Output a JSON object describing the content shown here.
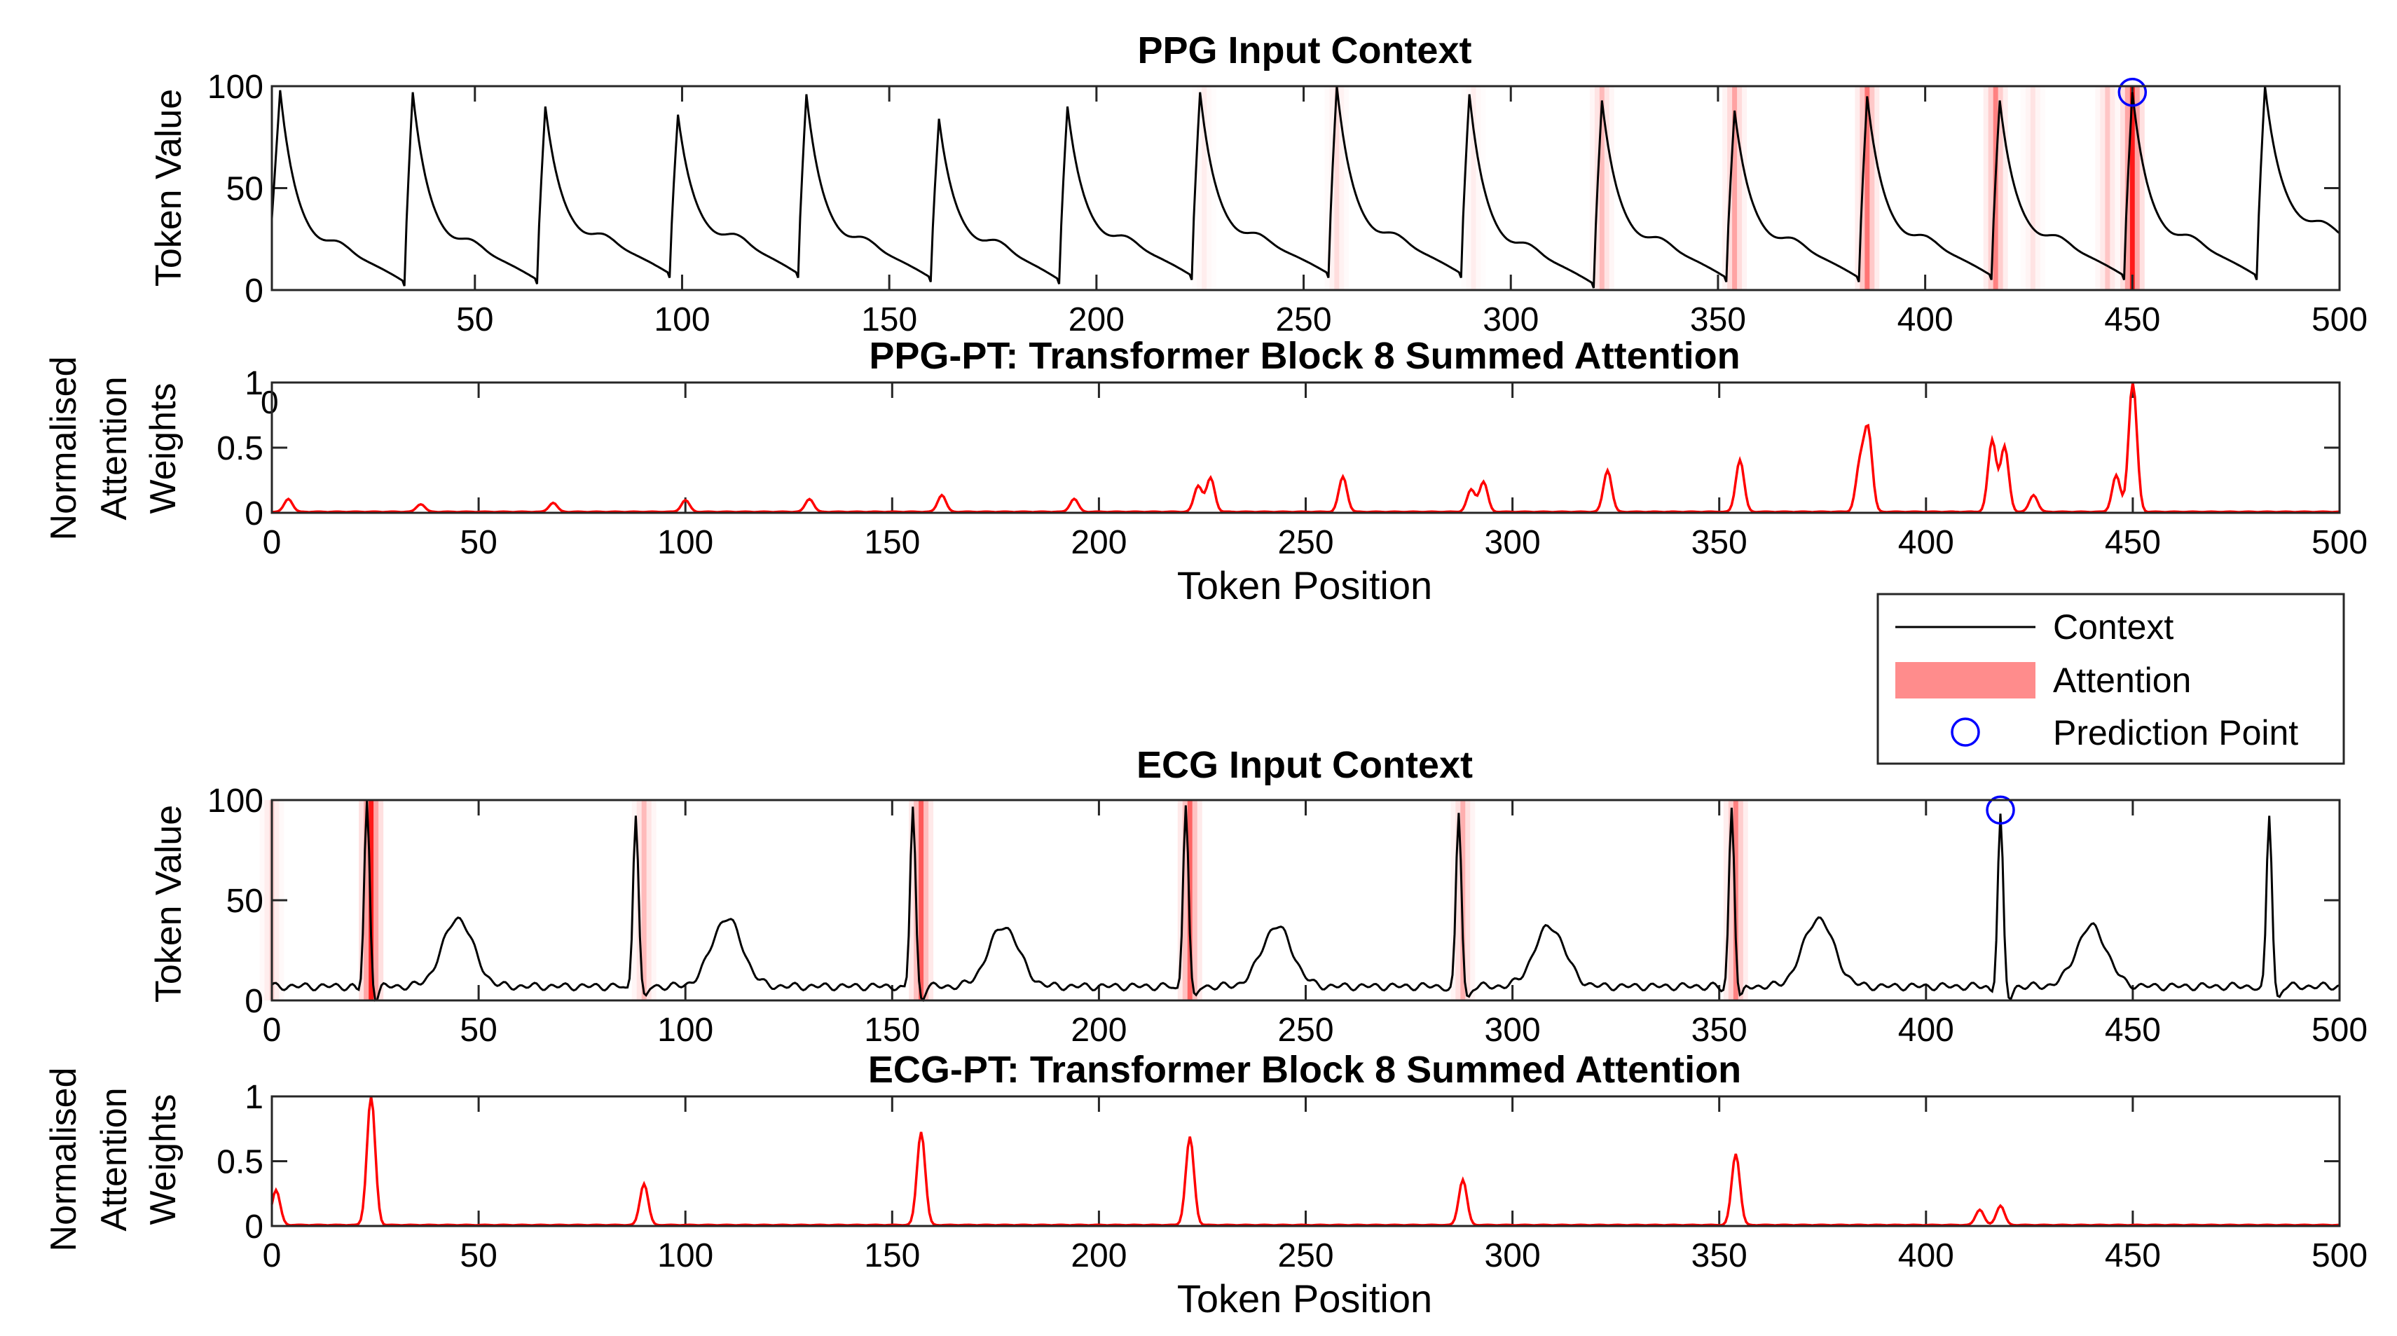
{
  "chart_data": [
    {
      "type": "line",
      "title": "PPG Input Context",
      "xlabel": "",
      "ylabel": "Token Value",
      "xlim": [
        1,
        500
      ],
      "ylim": [
        0,
        100
      ],
      "xticks": [
        50,
        100,
        150,
        200,
        250,
        300,
        350,
        400,
        450,
        500
      ],
      "yticks": [
        0,
        50,
        100
      ],
      "peaks": [
        3,
        35,
        67,
        99,
        130,
        162,
        193,
        225,
        258,
        290,
        322,
        354,
        386,
        418,
        450,
        482
      ],
      "peak_values": [
        98,
        97,
        90,
        86,
        96,
        84,
        90,
        97,
        100,
        96,
        93,
        88,
        95,
        93,
        97,
        100
      ],
      "troughs": [
        33,
        65,
        97,
        128,
        160,
        191,
        223,
        256,
        288,
        320,
        352,
        384,
        416,
        448,
        480
      ],
      "trough_values": [
        2,
        3,
        6,
        6,
        4,
        3,
        5,
        6,
        6,
        1,
        4,
        4,
        5,
        5,
        5
      ],
      "attention_bands": [
        {
          "x": 226,
          "w": 0.08
        },
        {
          "x": 258,
          "w": 0.15
        },
        {
          "x": 291,
          "w": 0.08
        },
        {
          "x": 322,
          "w": 0.3
        },
        {
          "x": 354,
          "w": 0.4
        },
        {
          "x": 386,
          "w": 0.6
        },
        {
          "x": 417,
          "w": 0.55
        },
        {
          "x": 426,
          "w": 0.12
        },
        {
          "x": 444,
          "w": 0.25
        },
        {
          "x": 450,
          "w": 1.0
        }
      ],
      "prediction_point": {
        "x": 450,
        "y": 97
      }
    },
    {
      "type": "line",
      "title": "PPG-PT: Transformer Block 8 Summed Attention",
      "xlabel": "Token Position",
      "ylabel": "Normalised Attention Weights",
      "xlim": [
        0,
        500
      ],
      "ylim": [
        0,
        1
      ],
      "xticks": [
        0,
        50,
        100,
        150,
        200,
        250,
        300,
        350,
        400,
        450,
        500
      ],
      "yticks": [
        0,
        0.5,
        1
      ],
      "stray_tick_label": "0",
      "peaks": [
        {
          "x": 4,
          "y": 0.1
        },
        {
          "x": 36,
          "y": 0.06
        },
        {
          "x": 68,
          "y": 0.07
        },
        {
          "x": 100,
          "y": 0.09
        },
        {
          "x": 130,
          "y": 0.1
        },
        {
          "x": 162,
          "y": 0.13
        },
        {
          "x": 194,
          "y": 0.1
        },
        {
          "x": 224,
          "y": 0.2
        },
        {
          "x": 227,
          "y": 0.26
        },
        {
          "x": 259,
          "y": 0.27
        },
        {
          "x": 290,
          "y": 0.17
        },
        {
          "x": 293,
          "y": 0.23
        },
        {
          "x": 323,
          "y": 0.32
        },
        {
          "x": 355,
          "y": 0.4
        },
        {
          "x": 384,
          "y": 0.35
        },
        {
          "x": 386,
          "y": 0.62
        },
        {
          "x": 416,
          "y": 0.55
        },
        {
          "x": 419,
          "y": 0.5
        },
        {
          "x": 426,
          "y": 0.13
        },
        {
          "x": 446,
          "y": 0.28
        },
        {
          "x": 450,
          "y": 1.0
        }
      ]
    },
    {
      "type": "line",
      "title": "ECG Input Context",
      "xlabel": "",
      "ylabel": "Token Value",
      "xlim": [
        0,
        500
      ],
      "ylim": [
        0,
        100
      ],
      "xticks": [
        0,
        50,
        100,
        150,
        200,
        250,
        300,
        350,
        400,
        450,
        500
      ],
      "yticks": [
        0,
        50,
        100
      ],
      "r_peaks": [
        23,
        88,
        155,
        221,
        287,
        353,
        418,
        483
      ],
      "r_values": [
        100,
        95,
        98,
        100,
        95,
        98,
        93,
        94
      ],
      "t_waves": [
        45,
        110,
        177,
        243,
        309,
        374,
        440
      ],
      "t_values": [
        42,
        42,
        38,
        38,
        38,
        42,
        38
      ],
      "attention_bands": [
        {
          "x": 24,
          "w": 1.0
        },
        {
          "x": 90,
          "w": 0.3
        },
        {
          "x": 157,
          "w": 0.72
        },
        {
          "x": 222,
          "w": 0.68
        },
        {
          "x": 288,
          "w": 0.35
        },
        {
          "x": 354,
          "w": 0.55
        },
        {
          "x": 0,
          "w": 0.2
        }
      ],
      "prediction_point": {
        "x": 418,
        "y": 95
      }
    },
    {
      "type": "line",
      "title": "ECG-PT: Transformer Block 8 Summed Attention",
      "xlabel": "Token Position",
      "ylabel": "Normalised Attention Weights",
      "xlim": [
        0,
        500
      ],
      "ylim": [
        0,
        1
      ],
      "xticks": [
        0,
        50,
        100,
        150,
        200,
        250,
        300,
        350,
        400,
        450,
        500
      ],
      "yticks": [
        0,
        0.5,
        1
      ],
      "peaks": [
        {
          "x": 1,
          "y": 0.27
        },
        {
          "x": 24,
          "y": 1.0
        },
        {
          "x": 90,
          "y": 0.32
        },
        {
          "x": 157,
          "y": 0.72
        },
        {
          "x": 222,
          "y": 0.68
        },
        {
          "x": 288,
          "y": 0.35
        },
        {
          "x": 354,
          "y": 0.55
        },
        {
          "x": 413,
          "y": 0.12
        },
        {
          "x": 418,
          "y": 0.15
        }
      ]
    }
  ],
  "legend": {
    "placement": "right, between the PPG and ECG panels",
    "entries": [
      {
        "label": "Context",
        "color": "#000000"
      },
      {
        "label": "Attention",
        "color": "#ff8c8c"
      },
      {
        "label": "Prediction Point",
        "color": "#0000ff"
      }
    ]
  },
  "colors": {
    "context": "#000000",
    "attention": "#ff0000",
    "attention_band": "#ff8c8c",
    "prediction": "#0000ff"
  }
}
